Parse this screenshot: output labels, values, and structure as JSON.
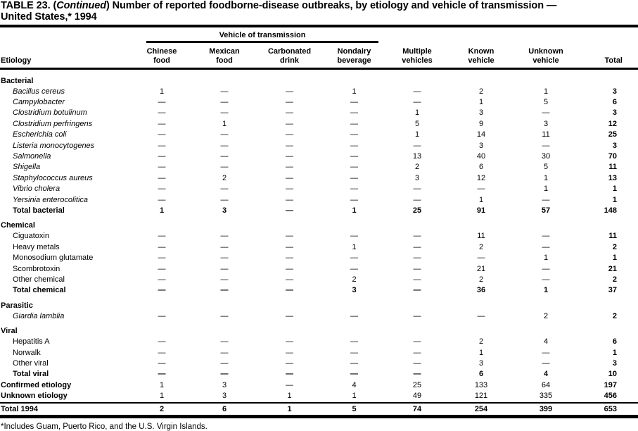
{
  "title": {
    "part1": "TABLE 23. (",
    "part2_italic": "Continued",
    "part3": ") Number of reported foodborne-disease outbreaks, by etiology and vehicle of transmission —",
    "line2": "United States,* 1994"
  },
  "header": {
    "span_label": "Vehicle of transmission",
    "etiology_label": "Etiology",
    "total_label": "Total",
    "columns": [
      {
        "line1": "Chinese",
        "line2": "food"
      },
      {
        "line1": "Mexican",
        "line2": "food"
      },
      {
        "line1": "Carbonated",
        "line2": "drink"
      },
      {
        "line1": "Nondairy",
        "line2": "beverage"
      },
      {
        "line1": "Multiple",
        "line2": "vehicles"
      },
      {
        "line1": "Known",
        "line2": "vehicle"
      },
      {
        "line1": "Unknown",
        "line2": "vehicle"
      }
    ]
  },
  "table": {
    "column_keys": [
      "chinese_food",
      "mexican_food",
      "carbonated_drink",
      "nondairy_beverage",
      "multiple_vehicles",
      "known_vehicle",
      "unknown_vehicle",
      "total"
    ],
    "rows": [
      {
        "style": "section",
        "label": "Bacterial",
        "values": []
      },
      {
        "style": "item",
        "italic": true,
        "label": "Bacillus cereus",
        "values": [
          "1",
          "—",
          "—",
          "1",
          "—",
          "2",
          "1",
          "3"
        ]
      },
      {
        "style": "item",
        "italic": true,
        "label": "Campylobacter",
        "values": [
          "—",
          "—",
          "—",
          "—",
          "—",
          "1",
          "5",
          "6"
        ]
      },
      {
        "style": "item",
        "italic": true,
        "label": "Clostridium botulinum",
        "values": [
          "—",
          "—",
          "—",
          "—",
          "1",
          "3",
          "—",
          "3"
        ]
      },
      {
        "style": "item",
        "italic": true,
        "label": "Clostridium perfringens",
        "values": [
          "—",
          "1",
          "—",
          "—",
          "5",
          "9",
          "3",
          "12"
        ]
      },
      {
        "style": "item",
        "italic": true,
        "label": "Escherichia coli",
        "values": [
          "—",
          "—",
          "—",
          "—",
          "1",
          "14",
          "11",
          "25"
        ]
      },
      {
        "style": "item",
        "italic": true,
        "label": "Listeria monocytogenes",
        "values": [
          "—",
          "—",
          "—",
          "—",
          "—",
          "3",
          "—",
          "3"
        ]
      },
      {
        "style": "item",
        "italic": true,
        "label": "Salmonella",
        "values": [
          "—",
          "—",
          "—",
          "—",
          "13",
          "40",
          "30",
          "70"
        ]
      },
      {
        "style": "item",
        "italic": true,
        "label": "Shigella",
        "values": [
          "—",
          "—",
          "—",
          "—",
          "2",
          "6",
          "5",
          "11"
        ]
      },
      {
        "style": "item",
        "italic": true,
        "label": "Staphylococcus aureus",
        "values": [
          "—",
          "2",
          "—",
          "—",
          "3",
          "12",
          "1",
          "13"
        ]
      },
      {
        "style": "item",
        "italic": true,
        "label": "Vibrio cholera",
        "values": [
          "—",
          "—",
          "—",
          "—",
          "—",
          "—",
          "1",
          "1"
        ]
      },
      {
        "style": "item",
        "italic": true,
        "label": "Yersinia enterocolitica",
        "values": [
          "—",
          "—",
          "—",
          "—",
          "—",
          "1",
          "—",
          "1"
        ]
      },
      {
        "style": "total",
        "italic": false,
        "label": "Total bacterial",
        "values": [
          "1",
          "3",
          "—",
          "1",
          "25",
          "91",
          "57",
          "148"
        ]
      },
      {
        "style": "section",
        "label": "Chemical",
        "values": []
      },
      {
        "style": "item",
        "italic": false,
        "label": "Ciguatoxin",
        "values": [
          "—",
          "—",
          "—",
          "—",
          "—",
          "11",
          "—",
          "11"
        ]
      },
      {
        "style": "item",
        "italic": false,
        "label": "Heavy metals",
        "values": [
          "—",
          "—",
          "—",
          "1",
          "—",
          "2",
          "—",
          "2"
        ]
      },
      {
        "style": "item",
        "italic": false,
        "label": "Monosodium glutamate",
        "values": [
          "—",
          "—",
          "—",
          "—",
          "—",
          "—",
          "1",
          "1"
        ]
      },
      {
        "style": "item",
        "italic": false,
        "label": "Scombrotoxin",
        "values": [
          "—",
          "—",
          "—",
          "—",
          "—",
          "21",
          "—",
          "21"
        ]
      },
      {
        "style": "item",
        "italic": false,
        "label": "Other chemical",
        "values": [
          "—",
          "—",
          "—",
          "2",
          "—",
          "2",
          "—",
          "2"
        ]
      },
      {
        "style": "total",
        "italic": false,
        "label": "Total chemical",
        "values": [
          "—",
          "—",
          "—",
          "3",
          "—",
          "36",
          "1",
          "37"
        ]
      },
      {
        "style": "section",
        "label": "Parasitic",
        "values": []
      },
      {
        "style": "item",
        "italic": true,
        "label": "Giardia lamblia",
        "values": [
          "—",
          "—",
          "—",
          "—",
          "—",
          "—",
          "2",
          "2"
        ]
      },
      {
        "style": "section",
        "label": "Viral",
        "values": []
      },
      {
        "style": "item",
        "italic": false,
        "label": "Hepatitis A",
        "values": [
          "—",
          "—",
          "—",
          "—",
          "—",
          "2",
          "4",
          "6"
        ]
      },
      {
        "style": "item",
        "italic": false,
        "label": "Norwalk",
        "values": [
          "—",
          "—",
          "—",
          "—",
          "—",
          "1",
          "—",
          "1"
        ]
      },
      {
        "style": "item",
        "italic": false,
        "label": "Other viral",
        "values": [
          "—",
          "—",
          "—",
          "—",
          "—",
          "3",
          "—",
          "3"
        ]
      },
      {
        "style": "total",
        "italic": false,
        "label": "Total viral",
        "values": [
          "—",
          "—",
          "—",
          "—",
          "—",
          "6",
          "4",
          "10"
        ]
      },
      {
        "style": "flush",
        "italic": false,
        "label": "Confirmed etiology",
        "values": [
          "1",
          "3",
          "—",
          "4",
          "25",
          "133",
          "64",
          "197"
        ]
      },
      {
        "style": "flush",
        "italic": false,
        "label": "Unknown etiology",
        "values": [
          "1",
          "3",
          "1",
          "1",
          "49",
          "121",
          "335",
          "456"
        ]
      },
      {
        "style": "grand",
        "italic": false,
        "label": "Total 1994",
        "values": [
          "2",
          "6",
          "1",
          "5",
          "74",
          "254",
          "399",
          "653"
        ]
      }
    ]
  },
  "footnote": "*Includes Guam, Puerto Rico, and the U.S. Virgin Islands."
}
